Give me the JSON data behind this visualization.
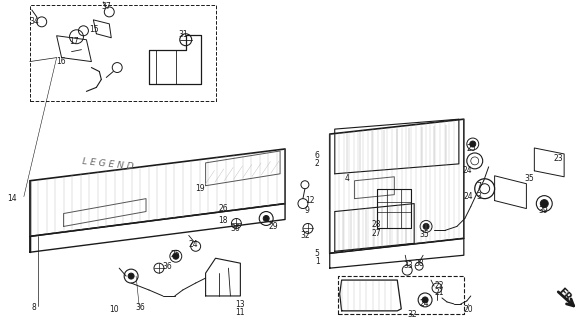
{
  "bg_color": "#ffffff",
  "line_color": "#1a1a1a",
  "gray_line": "#888888",
  "light_gray": "#cccccc",
  "fig_width": 5.87,
  "fig_height": 3.2,
  "dpi": 100
}
